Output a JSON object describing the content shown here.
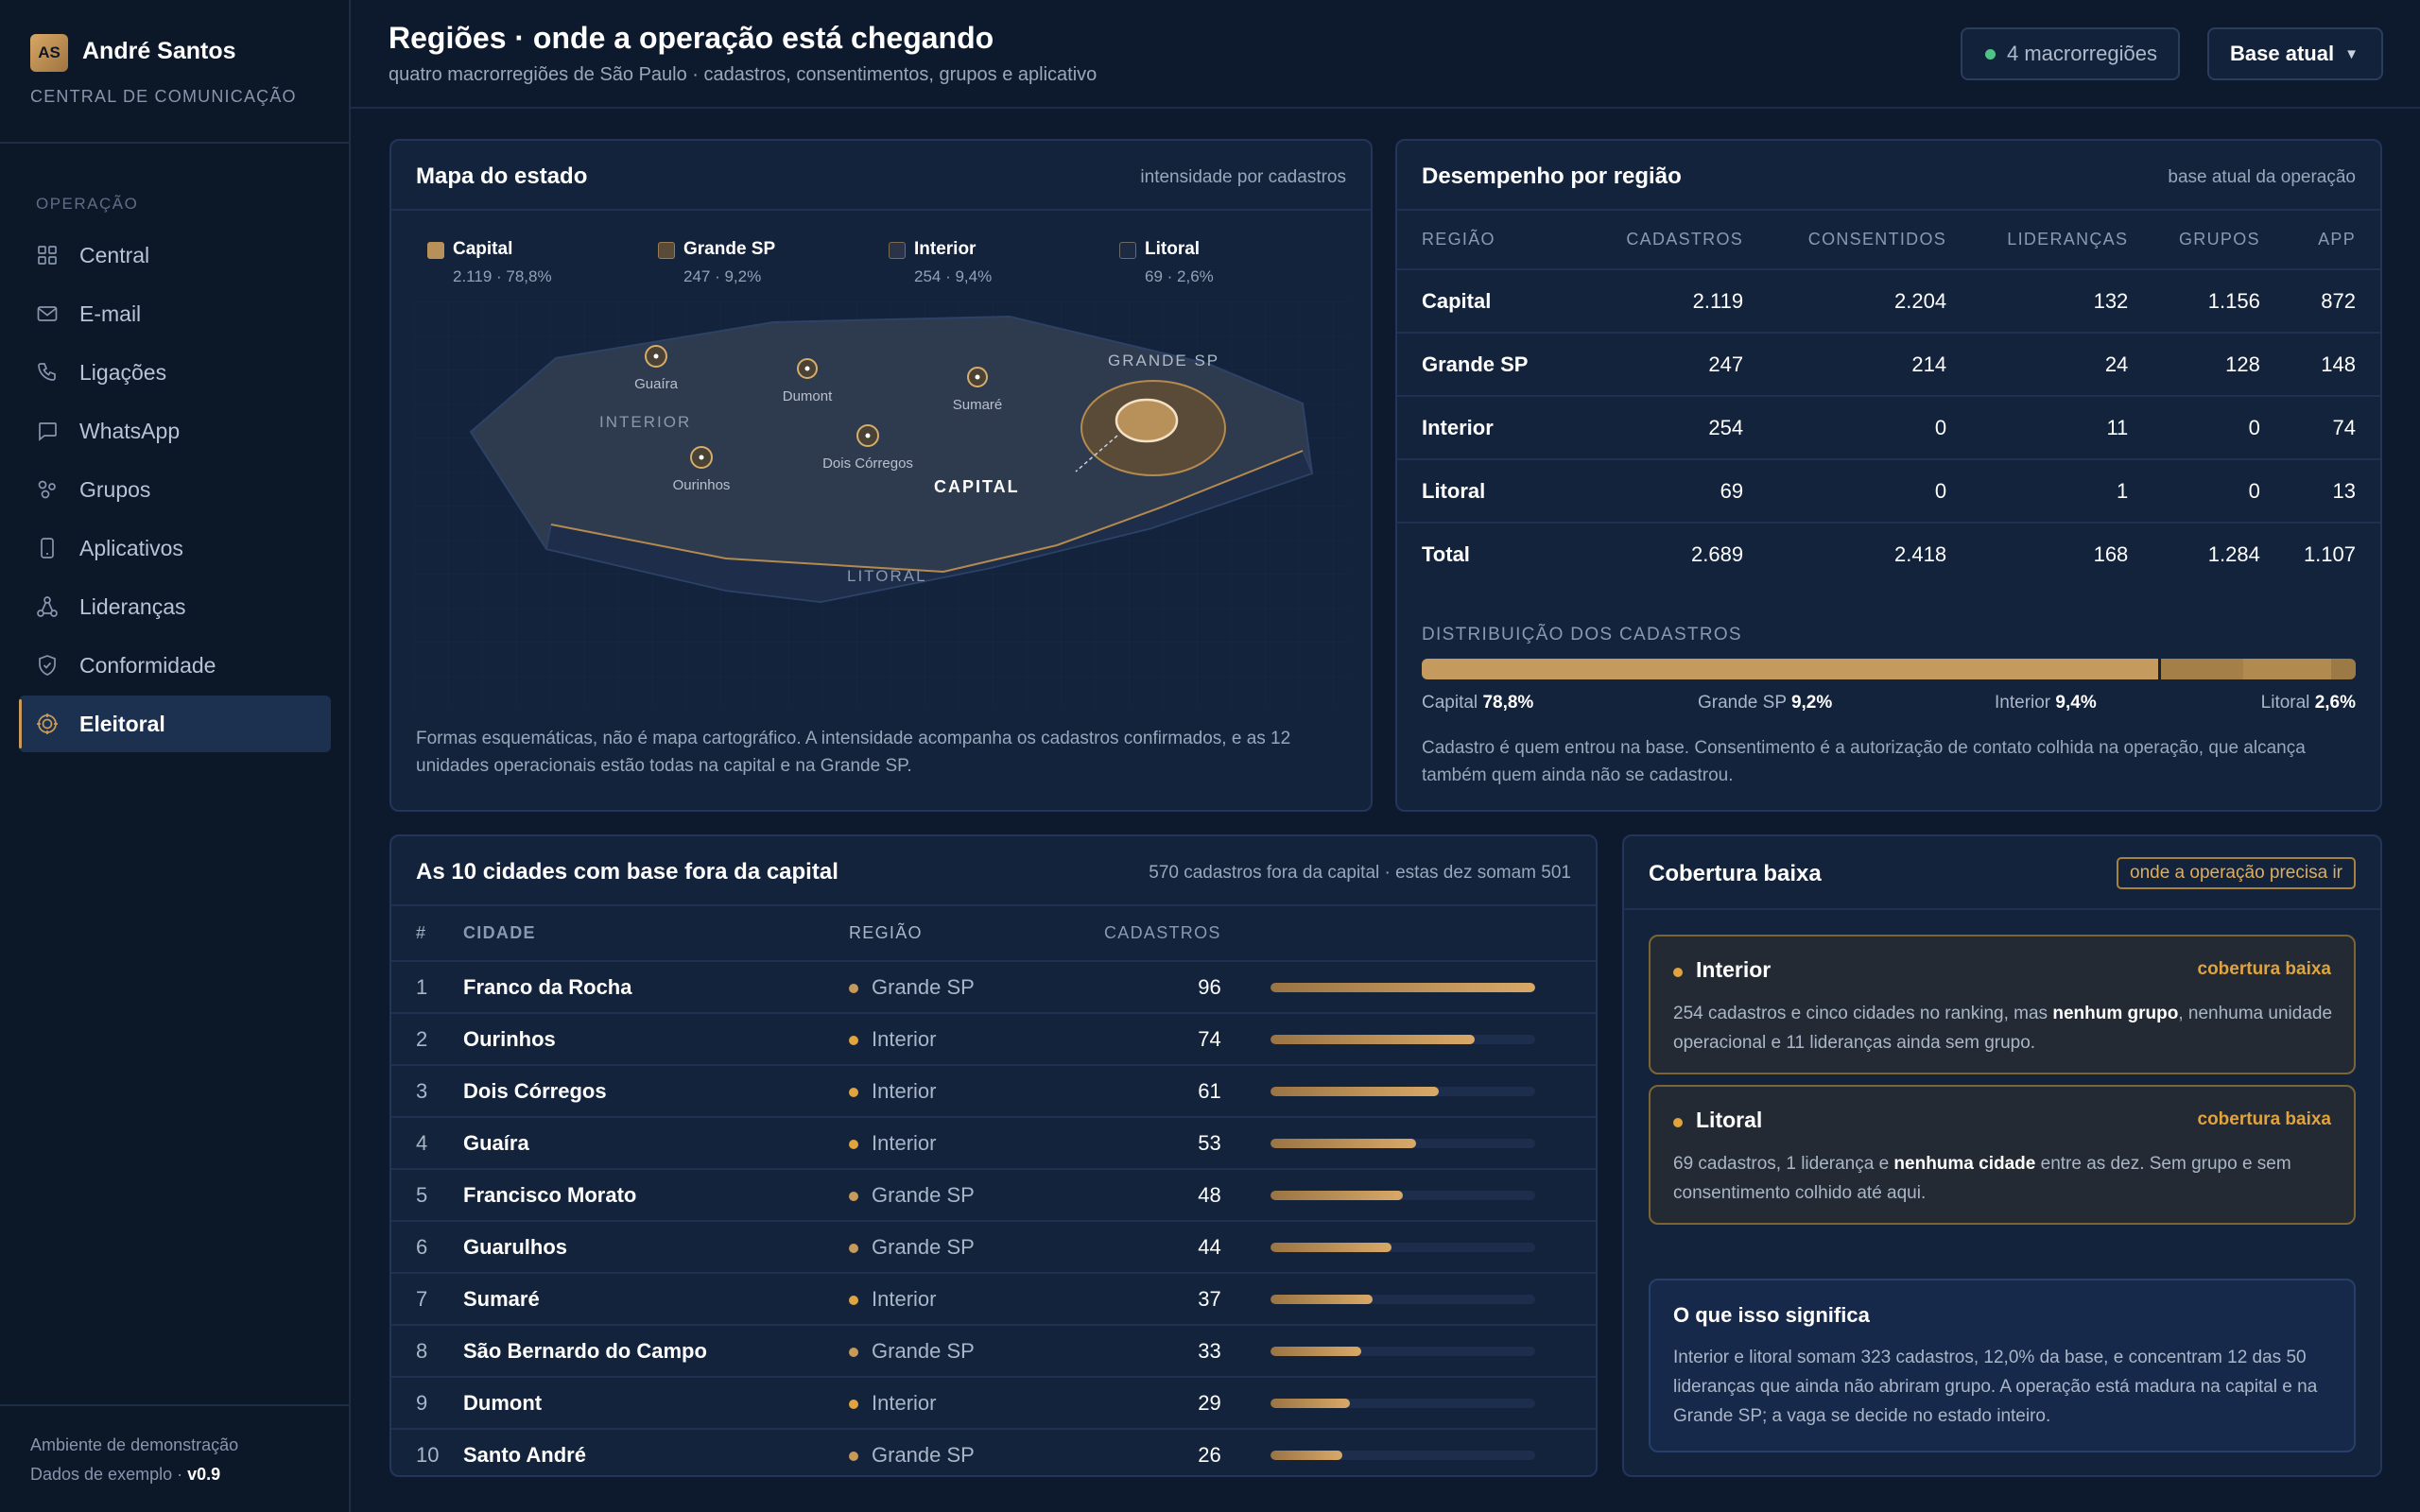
{
  "sidebar": {
    "avatar": "AS",
    "user_name": "André Santos",
    "org": "CENTRAL DE COMUNICAÇÃO",
    "section": "OPERAÇÃO",
    "items": [
      {
        "label": "Central",
        "icon": "grid-icon"
      },
      {
        "label": "E-mail",
        "icon": "mail-icon"
      },
      {
        "label": "Ligações",
        "icon": "phone-icon"
      },
      {
        "label": "WhatsApp",
        "icon": "chat-icon"
      },
      {
        "label": "Grupos",
        "icon": "groups-icon"
      },
      {
        "label": "Aplicativos",
        "icon": "mobile-icon"
      },
      {
        "label": "Lideranças",
        "icon": "network-icon"
      },
      {
        "label": "Conformidade",
        "icon": "shield-icon"
      },
      {
        "label": "Eleitoral",
        "icon": "target-icon",
        "active": true
      }
    ],
    "footer_env": "Ambiente de demonstração",
    "footer_data": "Dados de exemplo ·",
    "footer_version": "v0.9"
  },
  "header": {
    "title": "Regiões · onde a operação está chegando",
    "subtitle": "quatro macrorregiões de São Paulo · cadastros, consentimentos, grupos e aplicativo",
    "pill": "4 macrorregiões",
    "select": "Base atual"
  },
  "map_card": {
    "title": "Mapa do estado",
    "note": "intensidade por cadastros",
    "legend": [
      {
        "name": "Capital",
        "value": "2.119 · 78,8%",
        "color": "#b8905a"
      },
      {
        "name": "Grande SP",
        "value": "247 · 9,2%",
        "color": "#5a4a38"
      },
      {
        "name": "Interior",
        "value": "254 · 9,4%",
        "color": "#2a3347"
      },
      {
        "name": "Litoral",
        "value": "69 · 2,6%",
        "color": "#1c2a42"
      }
    ],
    "region_labels": {
      "interior": "INTERIOR",
      "grande_sp": "GRANDE SP",
      "capital": "CAPITAL",
      "litoral": "LITORAL"
    },
    "cities": [
      "Guaíra",
      "Dumont",
      "Sumaré",
      "Dois Córregos",
      "Ourinhos"
    ],
    "footnote": "Formas esquemáticas, não é mapa cartográfico. A intensidade acompanha os cadastros confirmados, e as 12 unidades operacionais estão todas na capital e na Grande SP."
  },
  "perf_card": {
    "title": "Desempenho por região",
    "note": "base atual da operação",
    "columns": [
      "REGIÃO",
      "CADASTROS",
      "CONSENTIDOS",
      "LIDERANÇAS",
      "GRUPOS",
      "APP"
    ],
    "rows": [
      [
        "Capital",
        "2.119",
        "2.204",
        "132",
        "1.156",
        "872"
      ],
      [
        "Grande SP",
        "247",
        "214",
        "24",
        "128",
        "148"
      ],
      [
        "Interior",
        "254",
        "0",
        "11",
        "0",
        "74"
      ],
      [
        "Litoral",
        "69",
        "0",
        "1",
        "0",
        "13"
      ],
      [
        "Total",
        "2.689",
        "2.418",
        "168",
        "1.284",
        "1.107"
      ]
    ],
    "dist_label": "DISTRIBUIÇÃO DOS CADASTROS",
    "dist": [
      {
        "name": "Capital",
        "pct": "78,8%",
        "value": 78.8,
        "color": "#c49a5e"
      },
      {
        "name": "Grande SP",
        "pct": "9,2%",
        "value": 9.2,
        "color": "#a48048"
      },
      {
        "name": "Interior",
        "pct": "9,4%",
        "value": 9.4,
        "color": "#b08a4e"
      },
      {
        "name": "Litoral",
        "pct": "2,6%",
        "value": 2.6,
        "color": "#9c7a46"
      }
    ],
    "footnote": "Cadastro é quem entrou na base. Consentimento é a autorização de contato colhida na operação, que alcança também quem ainda não se cadastrou."
  },
  "cities_card": {
    "title": "As 10 cidades com base fora da capital",
    "note": "570 cadastros fora da capital · estas dez somam 501",
    "columns": [
      "#",
      "CIDADE",
      "REGIÃO",
      "CADASTROS"
    ],
    "max": 96,
    "rows": [
      {
        "rank": "1",
        "city": "Franco da Rocha",
        "region": "Grande SP",
        "value": 96
      },
      {
        "rank": "2",
        "city": "Ourinhos",
        "region": "Interior",
        "value": 74
      },
      {
        "rank": "3",
        "city": "Dois Córregos",
        "region": "Interior",
        "value": 61
      },
      {
        "rank": "4",
        "city": "Guaíra",
        "region": "Interior",
        "value": 53
      },
      {
        "rank": "5",
        "city": "Francisco Morato",
        "region": "Grande SP",
        "value": 48
      },
      {
        "rank": "6",
        "city": "Guarulhos",
        "region": "Grande SP",
        "value": 44
      },
      {
        "rank": "7",
        "city": "Sumaré",
        "region": "Interior",
        "value": 37
      },
      {
        "rank": "8",
        "city": "São Bernardo do Campo",
        "region": "Grande SP",
        "value": 33
      },
      {
        "rank": "9",
        "city": "Dumont",
        "region": "Interior",
        "value": 29
      },
      {
        "rank": "10",
        "city": "Santo André",
        "region": "Grande SP",
        "value": 26
      }
    ],
    "region_colors": {
      "Grande SP": "#c79a5a",
      "Interior": "#e0a33e"
    }
  },
  "coverage_card": {
    "title": "Cobertura baixa",
    "tag": "onde a operação precisa ir",
    "alerts": [
      {
        "title": "Interior",
        "flag": "cobertura baixa",
        "pre": "254 cadastros e cinco cidades no ranking, mas ",
        "strong": "nenhum grupo",
        "post": ", nenhuma unidade operacional e 11 lideranças ainda sem grupo."
      },
      {
        "title": "Litoral",
        "flag": "cobertura baixa",
        "pre": "69 cadastros, 1 liderança e ",
        "strong": "nenhuma cidade",
        "post": " entre as dez. Sem grupo e sem consentimento colhido até aqui."
      }
    ],
    "meaning_title": "O que isso significa",
    "meaning_body": "Interior e litoral somam 323 cadastros, 12,0% da base, e concentram 12 das 50 lideranças que ainda não abriram grupo. A operação está madura na capital e na Grande SP; a vaga se decide no estado inteiro."
  }
}
